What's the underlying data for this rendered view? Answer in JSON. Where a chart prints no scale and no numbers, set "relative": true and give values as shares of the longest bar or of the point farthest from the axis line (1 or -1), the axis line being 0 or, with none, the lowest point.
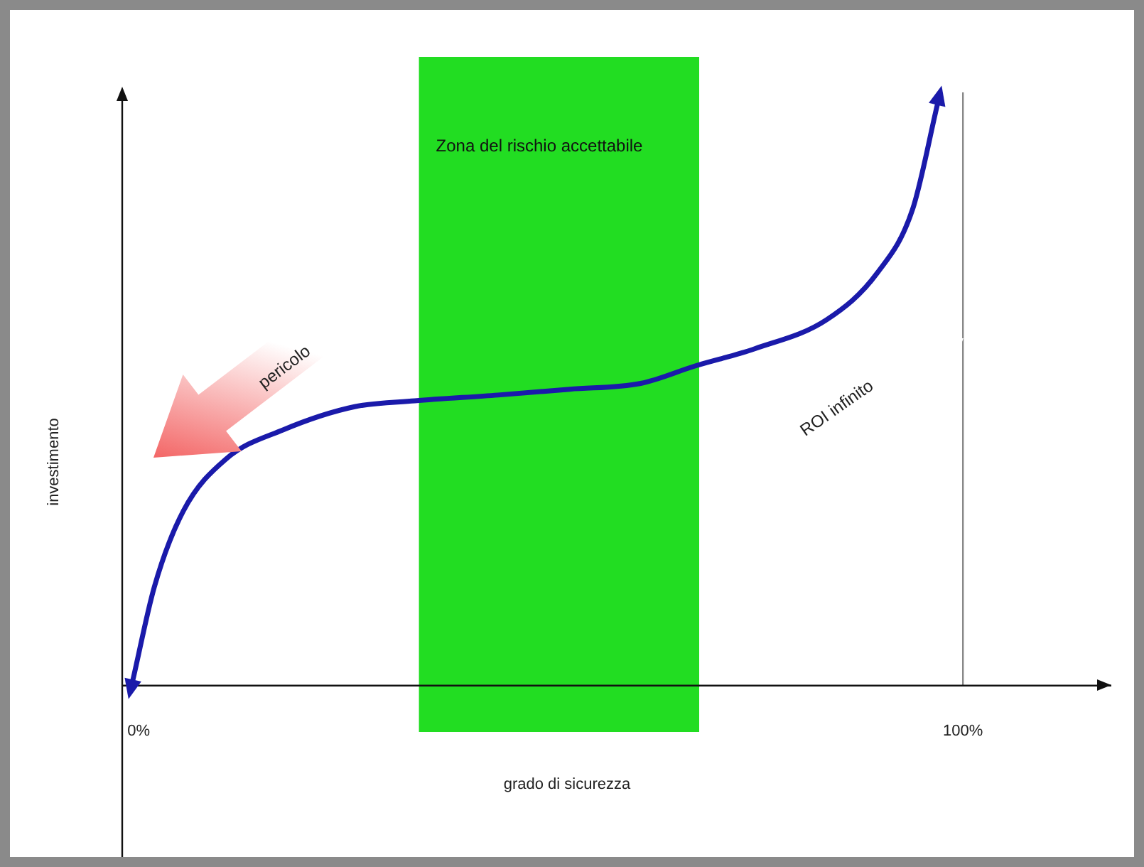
{
  "chart_data": {
    "type": "line",
    "xlabel": "grado di sicurezza",
    "ylabel": "investimento",
    "relative": true,
    "xlim": [
      -2,
      118
    ],
    "xticks": [
      {
        "value": 0,
        "label": "0%"
      },
      {
        "value": 100,
        "label": "100%"
      }
    ],
    "marker": "none",
    "grid": false,
    "legend": false,
    "series": [
      {
        "color": "#1a1aaa",
        "x": [
          -0.7,
          1.9,
          5.4,
          10.6,
          17.5,
          26.2,
          33.5,
          43.6,
          52.3,
          60.9,
          67.5,
          74.8,
          83.5,
          89.6,
          93.9,
          96.9
        ],
        "values": [
          0.01,
          0.17,
          0.3,
          0.39,
          0.44,
          0.48,
          0.49,
          0.5,
          0.51,
          0.52,
          0.55,
          0.58,
          0.63,
          0.71,
          0.82,
          1
        ]
      }
    ],
    "bands": [
      {
        "axis": "x",
        "from": 34,
        "to": 68,
        "label": "Zona del rischio accettabile",
        "color": "#22dd22"
      }
    ],
    "ref_lines": [
      {
        "axis": "x",
        "value": 100,
        "color": "#888888"
      }
    ],
    "annotations": [
      "pericolo",
      "ROI infinito"
    ]
  }
}
